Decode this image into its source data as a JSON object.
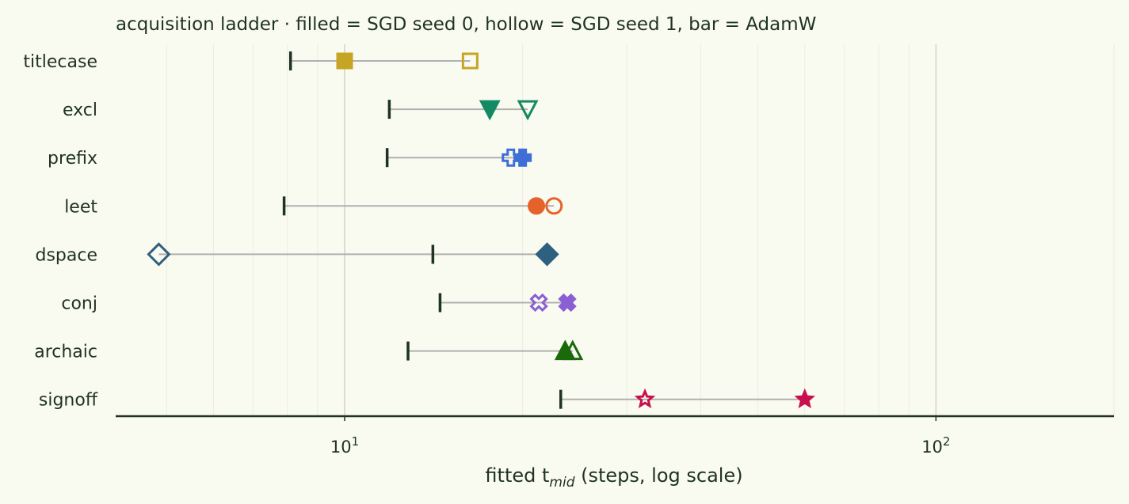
{
  "chart_data": {
    "type": "scatter",
    "title": "acquisition ladder · filled = SGD seed 0, hollow = SGD seed 1, bar = AdamW",
    "xlabel_main": "fitted t",
    "xlabel_sub": "mid",
    "xlabel_tail": " (steps, log scale)",
    "xscale": "log",
    "xlim": [
      4.1,
      200
    ],
    "xticks": [
      {
        "value": 10,
        "base": "10",
        "exp": "1"
      },
      {
        "value": 100,
        "base": "10",
        "exp": "2"
      }
    ],
    "grid": "vertical",
    "categories": [
      "titlecase",
      "excl",
      "prefix",
      "leet",
      "dspace",
      "conj",
      "archaic",
      "signoff"
    ],
    "rows": [
      {
        "label": "titlecase",
        "color": "#c7a524",
        "marker": "square",
        "sgd_seed0": 10.0,
        "sgd_seed1": 16.3,
        "adamw": 8.1
      },
      {
        "label": "excl",
        "color": "#148a64",
        "marker": "triangle-down",
        "sgd_seed0": 17.6,
        "sgd_seed1": 20.4,
        "adamw": 11.9
      },
      {
        "label": "prefix",
        "color": "#3e6fd6",
        "marker": "plus",
        "sgd_seed0": 20.0,
        "sgd_seed1": 19.1,
        "adamw": 11.8
      },
      {
        "label": "leet",
        "color": "#e5632a",
        "marker": "circle",
        "sgd_seed0": 21.1,
        "sgd_seed1": 22.6,
        "adamw": 7.9
      },
      {
        "label": "dspace",
        "color": "#2e6080",
        "marker": "diamond",
        "sgd_seed0": 22.0,
        "sgd_seed1": 4.85,
        "adamw": 14.1
      },
      {
        "label": "conj",
        "color": "#8a5fd4",
        "marker": "x",
        "sgd_seed0": 23.8,
        "sgd_seed1": 21.3,
        "adamw": 14.5
      },
      {
        "label": "archaic",
        "color": "#1a6a0c",
        "marker": "triangle-up",
        "sgd_seed0": 23.6,
        "sgd_seed1": 24.3,
        "adamw": 12.8
      },
      {
        "label": "signoff",
        "color": "#c8104e",
        "marker": "star",
        "sgd_seed0": 60.0,
        "sgd_seed1": 32.2,
        "adamw": 23.2
      }
    ]
  }
}
